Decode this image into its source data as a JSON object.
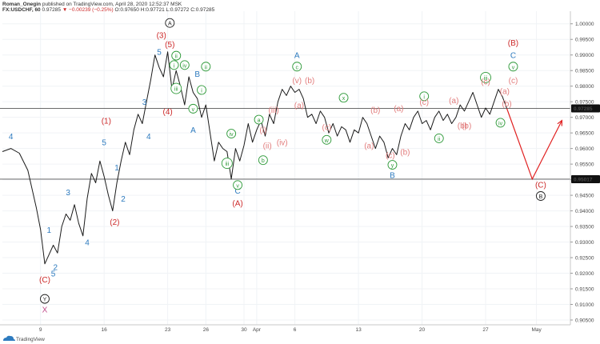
{
  "header": {
    "author": "Roman_Onegin",
    "published": "published on TradingView.com, April 28, 2020 12:52:37 MSK",
    "symbol": "FX:USDCHF, 60",
    "price": "0.97285",
    "change": "▼ −0.00239 (−0.25%)",
    "ohlc": "O:0.97650 H:0.97721 L:0.97272 C:0.97285"
  },
  "footer": {
    "brand": "TradingView"
  },
  "colors": {
    "blue": "#2e7bbf",
    "red": "#cc2929",
    "green": "#2f9a3a",
    "pink": "#e27d7d",
    "black": "#222222",
    "purple": "#c04a8a"
  },
  "chart_data": {
    "type": "line",
    "symbol": "FX:USDCHF",
    "interval": "60",
    "ylim": [
      0.905,
      1.0025
    ],
    "xlim": [
      0,
      134
    ],
    "y_ticks": [
      "0.90500",
      "0.91000",
      "0.91500",
      "0.92000",
      "0.92500",
      "0.93000",
      "0.93500",
      "0.94000",
      "0.94500",
      "0.95000",
      "0.95500",
      "0.96000",
      "0.96500",
      "0.97000",
      "0.97500",
      "0.98000",
      "0.98500",
      "0.99000",
      "0.99500",
      "1.00000"
    ],
    "x_ticks": [
      {
        "x": 9,
        "label": "9"
      },
      {
        "x": 24,
        "label": "16"
      },
      {
        "x": 39,
        "label": "23"
      },
      {
        "x": 48,
        "label": "26"
      },
      {
        "x": 57,
        "label": "30"
      },
      {
        "x": 60,
        "label": "Apr"
      },
      {
        "x": 69,
        "label": "6"
      },
      {
        "x": 84,
        "label": "13"
      },
      {
        "x": 99,
        "label": "20"
      },
      {
        "x": 114,
        "label": "27"
      },
      {
        "x": 126,
        "label": "May"
      }
    ],
    "price_labels": [
      {
        "value": "0.97285",
        "y": 0.97285
      },
      {
        "value": "0.95017",
        "y": 0.95017
      }
    ],
    "horizontal_lines": [
      0.97285,
      0.95017
    ],
    "series": [
      {
        "values": [
          [
            0,
            0.959
          ],
          [
            2,
            0.96
          ],
          [
            4,
            0.9585
          ],
          [
            6,
            0.953
          ],
          [
            8,
            0.941
          ],
          [
            9,
            0.934
          ],
          [
            10,
            0.923
          ],
          [
            11,
            0.926
          ],
          [
            12,
            0.929
          ],
          [
            13,
            0.9265
          ],
          [
            14,
            0.935
          ],
          [
            15,
            0.939
          ],
          [
            16,
            0.937
          ],
          [
            17,
            0.942
          ],
          [
            18,
            0.936
          ],
          [
            19,
            0.932
          ],
          [
            20,
            0.944
          ],
          [
            21,
            0.952
          ],
          [
            22,
            0.949
          ],
          [
            23,
            0.956
          ],
          [
            24,
            0.951
          ],
          [
            25,
            0.945
          ],
          [
            26,
            0.94
          ],
          [
            27,
            0.949
          ],
          [
            28,
            0.956
          ],
          [
            29,
            0.962
          ],
          [
            30,
            0.958
          ],
          [
            31,
            0.966
          ],
          [
            32,
            0.971
          ],
          [
            33,
            0.968
          ],
          [
            34,
            0.975
          ],
          [
            35,
            0.982
          ],
          [
            36,
            0.99
          ],
          [
            37,
            0.986
          ],
          [
            38,
            0.983
          ],
          [
            39,
            0.991
          ],
          [
            40,
            0.979
          ],
          [
            41,
            0.985
          ],
          [
            42,
            0.98
          ],
          [
            43,
            0.974
          ],
          [
            44,
            0.983
          ],
          [
            45,
            0.978
          ],
          [
            46,
            0.976
          ],
          [
            47,
            0.97
          ],
          [
            48,
            0.974
          ],
          [
            49,
            0.965
          ],
          [
            50,
            0.956
          ],
          [
            51,
            0.962
          ],
          [
            52,
            0.96
          ],
          [
            53,
            0.959
          ],
          [
            54,
            0.9502
          ],
          [
            55,
            0.96
          ],
          [
            56,
            0.956
          ],
          [
            57,
            0.961
          ],
          [
            58,
            0.968
          ],
          [
            59,
            0.962
          ],
          [
            60,
            0.966
          ],
          [
            61,
            0.969
          ],
          [
            62,
            0.964
          ],
          [
            63,
            0.971
          ],
          [
            64,
            0.968
          ],
          [
            65,
            0.975
          ],
          [
            66,
            0.979
          ],
          [
            67,
            0.977
          ],
          [
            68,
            0.98
          ],
          [
            69,
            0.978
          ],
          [
            70,
            0.979
          ],
          [
            71,
            0.976
          ],
          [
            72,
            0.97
          ],
          [
            73,
            0.971
          ],
          [
            74,
            0.968
          ],
          [
            75,
            0.972
          ],
          [
            76,
            0.97
          ],
          [
            77,
            0.965
          ],
          [
            78,
            0.968
          ],
          [
            79,
            0.964
          ],
          [
            80,
            0.967
          ],
          [
            81,
            0.966
          ],
          [
            82,
            0.962
          ],
          [
            83,
            0.966
          ],
          [
            84,
            0.965
          ],
          [
            85,
            0.97
          ],
          [
            86,
            0.968
          ],
          [
            87,
            0.964
          ],
          [
            88,
            0.96
          ],
          [
            89,
            0.964
          ],
          [
            90,
            0.962
          ],
          [
            91,
            0.957
          ],
          [
            92,
            0.96
          ],
          [
            93,
            0.958
          ],
          [
            94,
            0.964
          ],
          [
            95,
            0.968
          ],
          [
            96,
            0.966
          ],
          [
            97,
            0.97
          ],
          [
            98,
            0.972
          ],
          [
            99,
            0.968
          ],
          [
            100,
            0.969
          ],
          [
            101,
            0.966
          ],
          [
            102,
            0.97
          ],
          [
            103,
            0.972
          ],
          [
            104,
            0.969
          ],
          [
            105,
            0.971
          ],
          [
            106,
            0.968
          ],
          [
            107,
            0.97
          ],
          [
            108,
            0.974
          ],
          [
            109,
            0.972
          ],
          [
            110,
            0.975
          ],
          [
            111,
            0.978
          ],
          [
            112,
            0.974
          ],
          [
            113,
            0.97
          ],
          [
            114,
            0.973
          ],
          [
            115,
            0.971
          ],
          [
            116,
            0.975
          ],
          [
            117,
            0.979
          ],
          [
            118,
            0.9765
          ],
          [
            119,
            0.9729
          ]
        ]
      }
    ],
    "projection": [
      [
        119,
        0.9729
      ],
      [
        125,
        0.9502
      ],
      [
        132,
        0.969
      ]
    ],
    "wave_labels": [
      {
        "text": "4",
        "x": 2,
        "y": 0.963,
        "color": "blue"
      },
      {
        "text": "(C)",
        "x": 10,
        "y": 0.917,
        "color": "red"
      },
      {
        "text": "Y",
        "x": 10,
        "y": 0.911,
        "color": "black",
        "circle": true
      },
      {
        "text": "X",
        "x": 10,
        "y": 0.9075,
        "color": "purple"
      },
      {
        "text": "1",
        "x": 11,
        "y": 0.933,
        "color": "blue"
      },
      {
        "text": "2",
        "x": 12.5,
        "y": 0.921,
        "color": "blue"
      },
      {
        "text": "3",
        "x": 15.5,
        "y": 0.945,
        "color": "blue"
      },
      {
        "text": "5",
        "x": 12,
        "y": 0.919,
        "color": "blue"
      },
      {
        "text": "4",
        "x": 20,
        "y": 0.929,
        "color": "blue"
      },
      {
        "text": "5",
        "x": 24,
        "y": 0.961,
        "color": "blue"
      },
      {
        "text": "(1)",
        "x": 24.5,
        "y": 0.968,
        "color": "red"
      },
      {
        "text": "1",
        "x": 27,
        "y": 0.953,
        "color": "blue"
      },
      {
        "text": "2",
        "x": 28.5,
        "y": 0.943,
        "color": "blue"
      },
      {
        "text": "(2)",
        "x": 26.5,
        "y": 0.9355,
        "color": "red"
      },
      {
        "text": "4",
        "x": 34.5,
        "y": 0.963,
        "color": "blue"
      },
      {
        "text": "3",
        "x": 33.5,
        "y": 0.974,
        "color": "blue"
      },
      {
        "text": "5",
        "x": 37,
        "y": 0.99,
        "color": "blue"
      },
      {
        "text": "(3)",
        "x": 37.5,
        "y": 0.9955,
        "color": "red"
      },
      {
        "text": "(5)",
        "x": 39.5,
        "y": 0.9925,
        "color": "red"
      },
      {
        "text": "(4)",
        "x": 39,
        "y": 0.971,
        "color": "red"
      },
      {
        "text": "A",
        "x": 39.5,
        "y": 0.9995,
        "color": "black",
        "circle": true
      },
      {
        "text": "A",
        "x": 45,
        "y": 0.965,
        "color": "blue"
      },
      {
        "text": "B",
        "x": 46,
        "y": 0.983,
        "color": "blue"
      },
      {
        "text": "C",
        "x": 55.5,
        "y": 0.9455,
        "color": "blue"
      },
      {
        "text": "(A)",
        "x": 55.5,
        "y": 0.9415,
        "color": "red"
      },
      {
        "text": "A",
        "x": 69.5,
        "y": 0.989,
        "color": "blue"
      },
      {
        "text": "B",
        "x": 92,
        "y": 0.9505,
        "color": "blue"
      },
      {
        "text": "C",
        "x": 120.5,
        "y": 0.989,
        "color": "blue"
      },
      {
        "text": "(B)",
        "x": 120.5,
        "y": 0.993,
        "color": "red"
      },
      {
        "text": "(C)",
        "x": 127,
        "y": 0.9475,
        "color": "red"
      },
      {
        "text": "B",
        "x": 127,
        "y": 0.944,
        "color": "black",
        "circle": true
      },
      {
        "text": "ii",
        "x": 41,
        "y": 0.989,
        "color": "green",
        "circle": true
      },
      {
        "text": "iv",
        "x": 43,
        "y": 0.986,
        "color": "green",
        "circle": true
      },
      {
        "text": "i",
        "x": 40.5,
        "y": 0.986,
        "color": "green",
        "circle": true
      },
      {
        "text": "iii",
        "x": 41,
        "y": 0.9785,
        "color": "green",
        "circle": true
      },
      {
        "text": "ii",
        "x": 48,
        "y": 0.9855,
        "color": "green",
        "circle": true
      },
      {
        "text": "i",
        "x": 47,
        "y": 0.978,
        "color": "green",
        "circle": true
      },
      {
        "text": "v",
        "x": 45,
        "y": 0.972,
        "color": "green",
        "circle": true
      },
      {
        "text": "iv",
        "x": 54,
        "y": 0.964,
        "color": "green",
        "circle": true
      },
      {
        "text": "iii",
        "x": 53,
        "y": 0.9545,
        "color": "green",
        "circle": true
      },
      {
        "text": "v",
        "x": 55.5,
        "y": 0.9475,
        "color": "green",
        "circle": true
      },
      {
        "text": "a",
        "x": 60.5,
        "y": 0.9685,
        "color": "green",
        "circle": true
      },
      {
        "text": "b",
        "x": 61.5,
        "y": 0.9555,
        "color": "green",
        "circle": true
      },
      {
        "text": "c",
        "x": 69.5,
        "y": 0.9855,
        "color": "green",
        "circle": true
      },
      {
        "text": "x",
        "x": 80.5,
        "y": 0.9755,
        "color": "green",
        "circle": true
      },
      {
        "text": "w",
        "x": 76.5,
        "y": 0.962,
        "color": "green",
        "circle": true
      },
      {
        "text": "y",
        "x": 92,
        "y": 0.954,
        "color": "green",
        "circle": true
      },
      {
        "text": "i",
        "x": 99.5,
        "y": 0.976,
        "color": "green",
        "circle": true
      },
      {
        "text": "ii",
        "x": 103,
        "y": 0.9625,
        "color": "green",
        "circle": true
      },
      {
        "text": "iii",
        "x": 114,
        "y": 0.982,
        "color": "green",
        "circle": true
      },
      {
        "text": "iv",
        "x": 117.5,
        "y": 0.9675,
        "color": "green",
        "circle": true
      },
      {
        "text": "v",
        "x": 120.5,
        "y": 0.9855,
        "color": "green",
        "circle": true
      },
      {
        "text": "(i)",
        "x": 61.5,
        "y": 0.965,
        "color": "pink"
      },
      {
        "text": "(ii)",
        "x": 62.5,
        "y": 0.96,
        "color": "pink"
      },
      {
        "text": "(iii)",
        "x": 64,
        "y": 0.9715,
        "color": "pink"
      },
      {
        "text": "(iv)",
        "x": 66,
        "y": 0.961,
        "color": "pink"
      },
      {
        "text": "(v)",
        "x": 69.5,
        "y": 0.981,
        "color": "pink"
      },
      {
        "text": "(a)",
        "x": 70,
        "y": 0.973,
        "color": "pink"
      },
      {
        "text": "(b)",
        "x": 72.5,
        "y": 0.981,
        "color": "pink"
      },
      {
        "text": "(c)",
        "x": 76.5,
        "y": 0.966,
        "color": "pink"
      },
      {
        "text": "(b)",
        "x": 88,
        "y": 0.9715,
        "color": "pink"
      },
      {
        "text": "(a)",
        "x": 86.5,
        "y": 0.96,
        "color": "pink"
      },
      {
        "text": "(c)",
        "x": 91.5,
        "y": 0.957,
        "color": "pink"
      },
      {
        "text": "(a)",
        "x": 93.5,
        "y": 0.972,
        "color": "pink"
      },
      {
        "text": "(b)",
        "x": 95,
        "y": 0.958,
        "color": "pink"
      },
      {
        "text": "(c)",
        "x": 99.5,
        "y": 0.974,
        "color": "pink"
      },
      {
        "text": "(a)",
        "x": 106.5,
        "y": 0.9745,
        "color": "pink"
      },
      {
        "text": "(b)",
        "x": 109.5,
        "y": 0.9665,
        "color": "pink"
      },
      {
        "text": "(b)",
        "x": 108.5,
        "y": 0.9665,
        "color": "pink"
      },
      {
        "text": "(c)",
        "x": 114,
        "y": 0.9805,
        "color": "pink"
      },
      {
        "text": "(a)",
        "x": 118.5,
        "y": 0.9775,
        "color": "pink"
      },
      {
        "text": "(b)",
        "x": 119,
        "y": 0.9735,
        "color": "pink"
      },
      {
        "text": "(c)",
        "x": 120.5,
        "y": 0.981,
        "color": "pink"
      }
    ]
  }
}
